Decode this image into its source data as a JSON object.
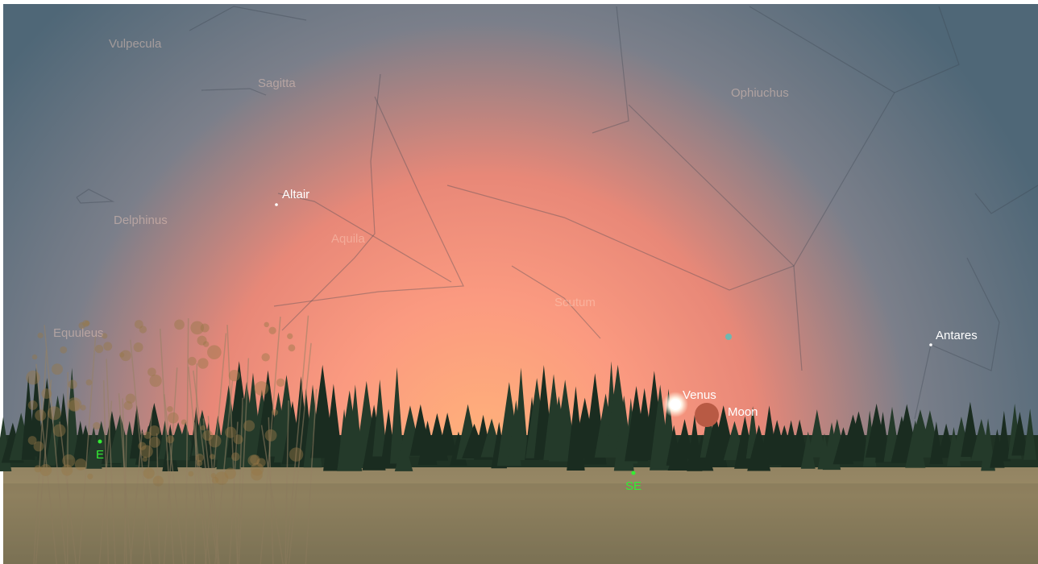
{
  "constellations": [
    "Vulpecula",
    "Sagitta",
    "Ophiuchus",
    "Delphinus",
    "Aquila",
    "Scutum",
    "Equuleus"
  ],
  "stars": [
    "Altair",
    "Antares"
  ],
  "solar_system": [
    "Venus",
    "Moon"
  ],
  "compass": [
    "E",
    "SE"
  ]
}
